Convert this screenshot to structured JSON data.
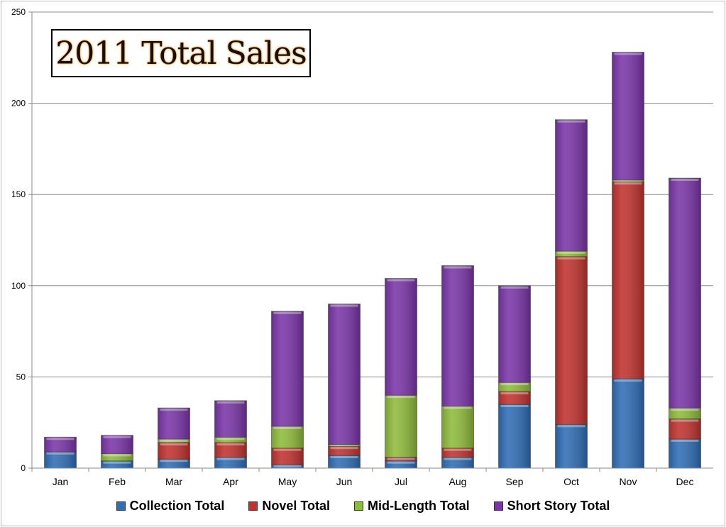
{
  "chart_data": {
    "type": "bar",
    "stacked": true,
    "title": "2011 Total Sales",
    "xlabel": "",
    "ylabel": "",
    "ylim": [
      0,
      250
    ],
    "yticks": [
      "0",
      "50",
      "100",
      "150",
      "200",
      "250"
    ],
    "grid": true,
    "legend": "bottom",
    "categories": [
      "Jan",
      "Feb",
      "Mar",
      "Apr",
      "May",
      "Jun",
      "Jul",
      "Aug",
      "Sep",
      "Oct",
      "Nov",
      "Dec"
    ],
    "series": [
      {
        "name": "Collection Total",
        "color": "#2f6db5",
        "values": [
          9,
          4,
          5,
          6,
          2,
          7,
          4,
          6,
          35,
          24,
          49,
          16
        ]
      },
      {
        "name": "Novel Total",
        "color": "#c0332f",
        "values": [
          0,
          0,
          9,
          8,
          9,
          5,
          2,
          5,
          7,
          92,
          108,
          11
        ]
      },
      {
        "name": "Mid-Length Total",
        "color": "#8fbb3a",
        "values": [
          0,
          4,
          2,
          3,
          12,
          1,
          34,
          23,
          5,
          3,
          1,
          6
        ]
      },
      {
        "name": "Short Story Total",
        "color": "#7a35a8",
        "values": [
          8,
          10,
          17,
          20,
          63,
          77,
          64,
          77,
          53,
          72,
          70,
          126
        ]
      }
    ]
  }
}
